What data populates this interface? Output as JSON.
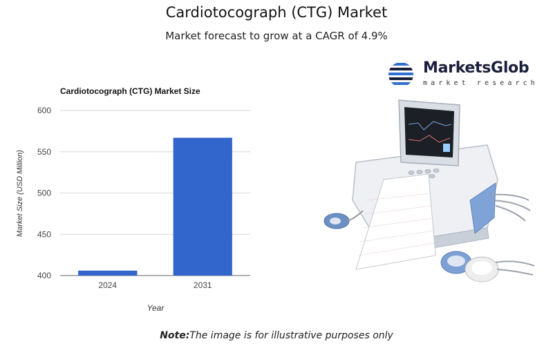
{
  "page": {
    "title": "Cardiotocograph (CTG) Market",
    "subtitle": "Market forecast to grow at a CAGR of 4.9%",
    "note_label": "Note:",
    "note_text": "The image is for illustrative purposes only"
  },
  "brand": {
    "name": "MarketsGlob",
    "tagline": "market research",
    "logo_icon": "globe-stripes-icon",
    "colors": {
      "dark": "#1b1f3b",
      "accent": "#2f6fd1"
    }
  },
  "product_image": {
    "icon": "cardiotocograph-machine-icon"
  },
  "chart_data": {
    "type": "bar",
    "title": "Cardiotocograph (CTG) Market Size",
    "xlabel": "Year",
    "ylabel": "Market Size (USD Million)",
    "categories": [
      "2024",
      "2031"
    ],
    "values": [
      406,
      567
    ],
    "ylim": [
      400,
      600
    ],
    "yticks": [
      400,
      450,
      500,
      550,
      600
    ],
    "grid": true,
    "legend": "none",
    "bar_color": "#3366cc"
  }
}
